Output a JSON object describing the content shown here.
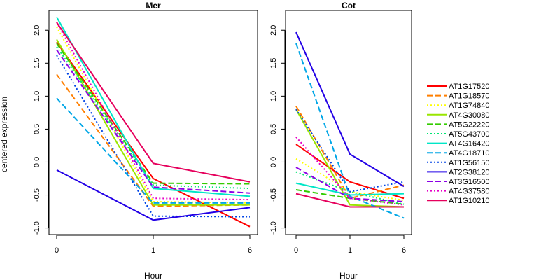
{
  "chart_data": {
    "type": "line",
    "ylabel": "centered expression",
    "xlabel": "Hour",
    "x_ticks": [
      "0",
      "1",
      "6"
    ],
    "y_ticks": [
      "-1.0",
      "-0.5",
      "0.0",
      "0.5",
      "1.0",
      "1.5",
      "2.0"
    ],
    "ylim": [
      -1.1,
      2.3
    ],
    "grid": false,
    "legend_position": "right",
    "series": [
      {
        "name": "AT1G17520",
        "color": "#ff0000",
        "dash": "solid"
      },
      {
        "name": "AT1G18570",
        "color": "#ff7f00",
        "dash": "dashed"
      },
      {
        "name": "AT1G74840",
        "color": "#ffff00",
        "dash": "dotted"
      },
      {
        "name": "AT4G30080",
        "color": "#99e600",
        "dash": "solid"
      },
      {
        "name": "AT5G22220",
        "color": "#33cc00",
        "dash": "dashed"
      },
      {
        "name": "AT5G43700",
        "color": "#00e673",
        "dash": "dotted"
      },
      {
        "name": "AT4G16420",
        "color": "#00e6c7",
        "dash": "solid"
      },
      {
        "name": "AT4G18710",
        "color": "#00a6e6",
        "dash": "dashed"
      },
      {
        "name": "AT1G56150",
        "color": "#0044e6",
        "dash": "dotted"
      },
      {
        "name": "AT2G38120",
        "color": "#2200e6",
        "dash": "solid"
      },
      {
        "name": "AT3G16500",
        "color": "#8c00e6",
        "dash": "dashed"
      },
      {
        "name": "AT4G37580",
        "color": "#e600c7",
        "dash": "dotted"
      },
      {
        "name": "AT1G10210",
        "color": "#e6005c",
        "dash": "solid"
      }
    ],
    "panels": [
      {
        "title": "Mer",
        "values": [
          [
            1.82,
            -0.25,
            -0.98
          ],
          [
            1.33,
            -0.67,
            -0.65
          ],
          [
            2.05,
            -0.6,
            -0.62
          ],
          [
            1.86,
            -0.65,
            -0.65
          ],
          [
            1.8,
            -0.32,
            -0.33
          ],
          [
            1.75,
            -0.35,
            -0.4
          ],
          [
            2.2,
            -0.4,
            -0.52
          ],
          [
            0.97,
            -0.62,
            -0.62
          ],
          [
            1.62,
            -0.82,
            -0.83
          ],
          [
            -0.12,
            -0.88,
            -0.69
          ],
          [
            1.7,
            -0.38,
            -0.47
          ],
          [
            2.12,
            -0.55,
            -0.57
          ],
          [
            2.12,
            -0.02,
            -0.3
          ]
        ]
      },
      {
        "title": "Cot",
        "values": [
          [
            0.27,
            -0.3,
            -0.55
          ],
          [
            0.85,
            -0.55,
            -0.35
          ],
          [
            0.05,
            -0.45,
            -0.58
          ],
          [
            0.8,
            -0.65,
            -0.68
          ],
          [
            -0.42,
            -0.55,
            -0.64
          ],
          [
            -0.15,
            -0.45,
            -0.64
          ],
          [
            -0.32,
            -0.5,
            -0.48
          ],
          [
            1.8,
            -0.52,
            -0.85
          ],
          [
            0.8,
            -0.45,
            -0.3
          ],
          [
            1.97,
            0.12,
            -0.37
          ],
          [
            -0.08,
            -0.55,
            -0.6
          ],
          [
            0.38,
            -0.55,
            -0.65
          ],
          [
            -0.48,
            -0.68,
            -0.68
          ]
        ]
      }
    ]
  }
}
